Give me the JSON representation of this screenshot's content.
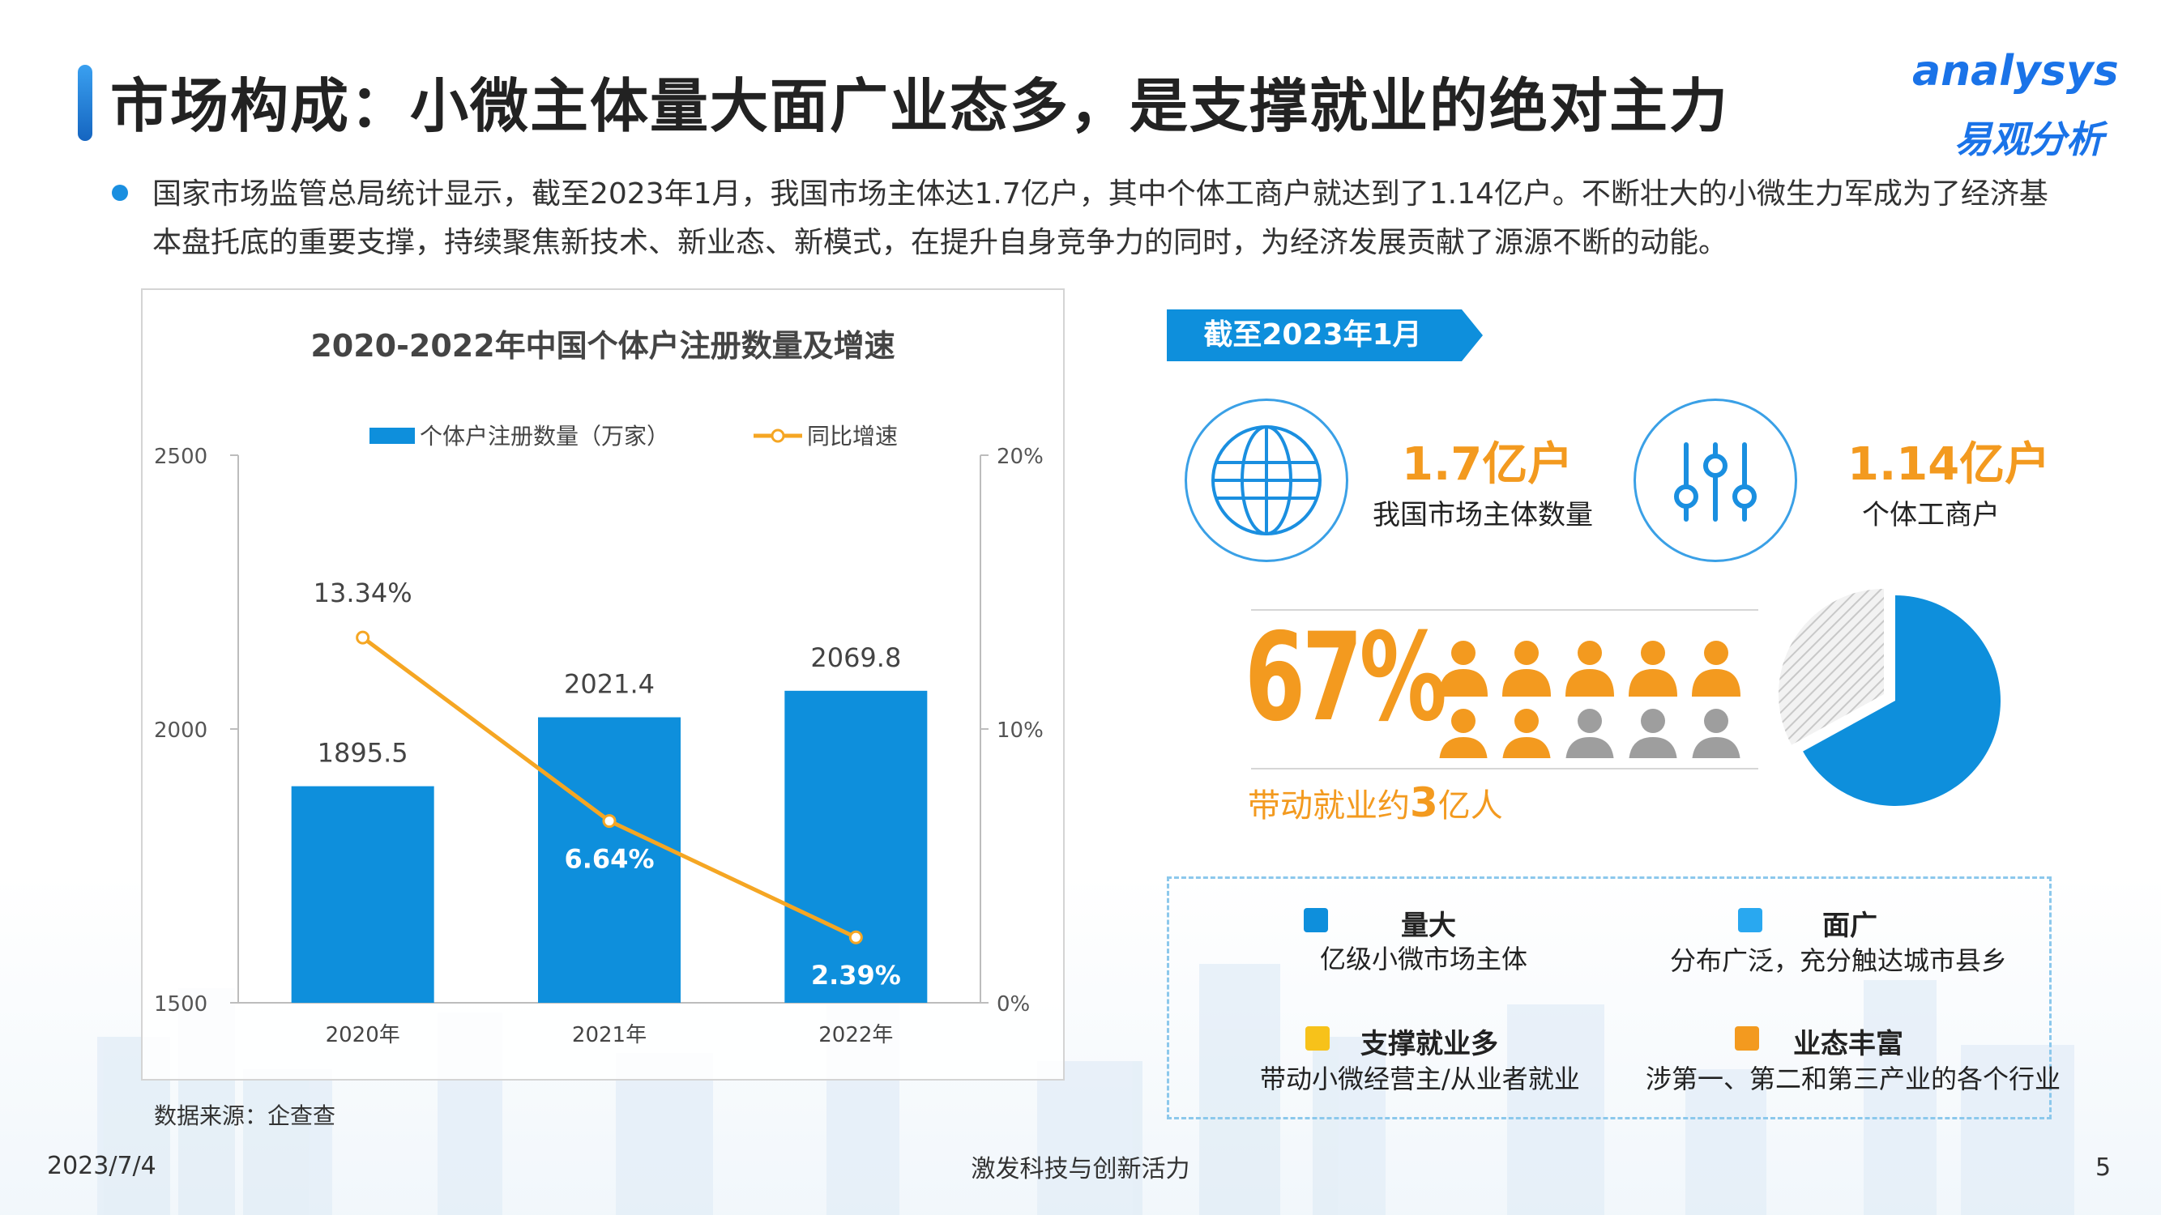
{
  "header": {
    "title": "市场构成：小微主体量大面广业态多，是支撑就业的绝对主力",
    "logo_en": "analysys",
    "logo_cn": "易观分析"
  },
  "intro_text": "国家市场监管总局统计显示，截至2023年1月，我国市场主体达1.7亿户，其中个体工商户就达到了1.14亿户。不断壮大的小微生力军成为了经济基本盘托底的重要支撑，持续聚焦新技术、新业态、新模式，在提升自身竞争力的同时，为经济发展贡献了源源不断的动能。",
  "chart_data": {
    "type": "bar",
    "title": "2020-2022年中国个体户注册数量及增速",
    "categories": [
      "2020年",
      "2021年",
      "2022年"
    ],
    "series": [
      {
        "name": "个体户注册数量（万家）",
        "type": "bar",
        "axis": "left",
        "values": [
          1895.5,
          2021.4,
          2069.8
        ],
        "labels": [
          "1895.5",
          "2021.4",
          "2069.8"
        ],
        "color": "#0e8fdc"
      },
      {
        "name": "同比增速",
        "type": "line",
        "axis": "right",
        "values": [
          13.34,
          6.64,
          2.39
        ],
        "labels": [
          "13.34%",
          "6.64%",
          "2.39%"
        ],
        "color": "#f5a623"
      }
    ],
    "y_left": {
      "range": [
        1500,
        2500
      ],
      "ticks": [
        "1500",
        "2000",
        "2500"
      ],
      "tick_values": [
        1500,
        2000,
        2500
      ]
    },
    "y_right": {
      "range": [
        0,
        20
      ],
      "ticks": [
        "0%",
        "10%",
        "20%"
      ],
      "tick_values": [
        0,
        10,
        20
      ]
    },
    "legend_position": "top",
    "grid": false
  },
  "source": "数据来源：企查查",
  "tag": "截至2023年1月",
  "stats": [
    {
      "value": "1.7亿户",
      "label": "我国市场主体数量",
      "icon": "globe-icon"
    },
    {
      "value": "1.14亿户",
      "label": "个体工商户",
      "icon": "sliders-icon"
    }
  ],
  "employment": {
    "percent": "67%",
    "percent_value": 67,
    "people_total": 10,
    "people_highlighted": 7,
    "text_prefix": "带动就业约",
    "text_num": "3",
    "text_suffix": "亿人"
  },
  "features": [
    {
      "title": "量大",
      "desc": "亿级小微市场主体",
      "color": "#0e8fdc"
    },
    {
      "title": "面广",
      "desc": "分布广泛，充分触达城市县乡",
      "color": "#29a8f0"
    },
    {
      "title": "支撑就业多",
      "desc": "带动小微经营主/从业者就业",
      "color": "#f7c21a"
    },
    {
      "title": "业态丰富",
      "desc": "涉第一、第二和第三产业的各个行业",
      "color": "#f39a1f"
    }
  ],
  "footer": {
    "date": "2023/7/4",
    "slogan": "激发科技与创新活力",
    "page": "5"
  },
  "colors": {
    "accent_blue": "#0e8fdc",
    "accent_orange": "#f39a1f",
    "person_grey": "#9e9e9e"
  }
}
